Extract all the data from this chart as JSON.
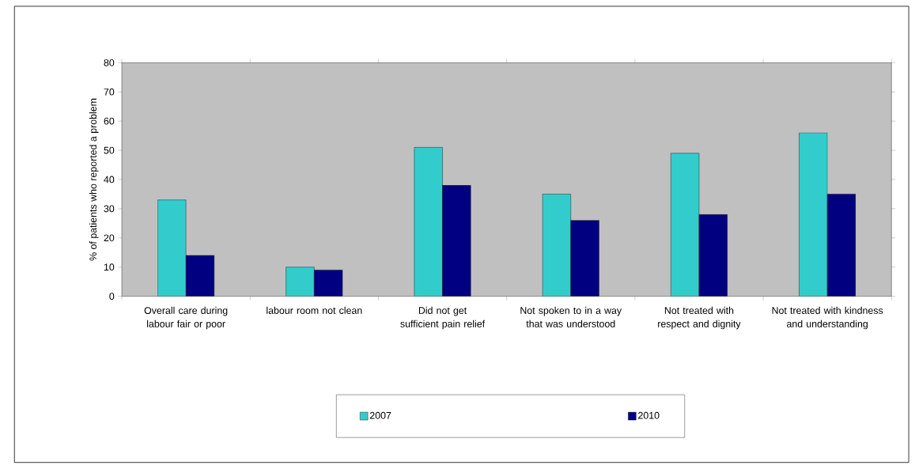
{
  "chart_data": {
    "type": "bar",
    "ylabel": "% of patients who reported a problem",
    "categories": [
      "Overall care during labour fair or poor",
      "labour room not clean",
      "Did not get sufficient pain relief",
      "Not spoken to in a way that was understood",
      "Not treated with respect and dignity",
      "Not treated with kindness and understanding"
    ],
    "series": [
      {
        "name": "2007",
        "color": "#33cccc",
        "values": [
          33,
          10,
          51,
          35,
          49,
          56
        ]
      },
      {
        "name": "2010",
        "color": "#000080",
        "values": [
          14,
          9,
          38,
          26,
          28,
          35
        ]
      }
    ],
    "ylim": [
      0,
      80
    ],
    "yticks": [
      0,
      10,
      20,
      30,
      40,
      50,
      60,
      70,
      80
    ],
    "legend": "bottom"
  }
}
